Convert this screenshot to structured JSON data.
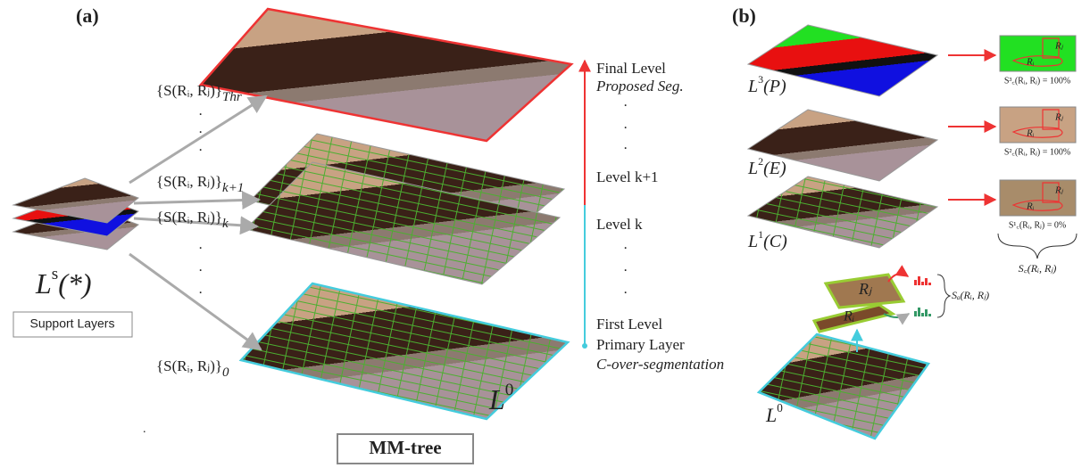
{
  "panel_a": {
    "label": "(a)",
    "thresholds": [
      {
        "base": "{S(Rᵢ, Rⱼ)}",
        "sub": "Thr"
      },
      {
        "base": "{S(Rᵢ, Rⱼ)}",
        "sub": "k+1"
      },
      {
        "base": "{S(Rᵢ, Rⱼ)}",
        "sub": "k"
      },
      {
        "base": "{S(Rᵢ, Rⱼ)}",
        "sub": "0"
      }
    ],
    "support": {
      "symbol": "L",
      "sup": "s",
      "arg": "(*)",
      "caption": "Support Layers"
    },
    "base_layer": {
      "symbol": "L",
      "sup": "0"
    },
    "caption": "MM-tree",
    "levels": [
      "Final Level",
      "Proposed Seg.",
      "Level k+1",
      "Level k",
      "First Level",
      "Primary Layer",
      "C-over-segmentation"
    ]
  },
  "panel_b": {
    "label": "(b)",
    "layers": [
      {
        "symbol": "L",
        "sup": "3",
        "arg": "(P)",
        "score": "S³꜀(Rᵢ, Rⱼ) = 100%"
      },
      {
        "symbol": "L",
        "sup": "2",
        "arg": "(E)",
        "score": "S²꜀(Rᵢ, Rⱼ) = 100%"
      },
      {
        "symbol": "L",
        "sup": "1",
        "arg": "(C)",
        "score": "S¹꜀(Rᵢ, Rⱼ) = 0%"
      }
    ],
    "base_layer": {
      "symbol": "L",
      "sup": "0"
    },
    "consistency": "S꜀(Rᵢ, Rⱼ)",
    "appearance": "Sₐ(Rᵢ, Rⱼ)",
    "region_j": "Rⱼ",
    "region_i": "Rᵢ"
  }
}
